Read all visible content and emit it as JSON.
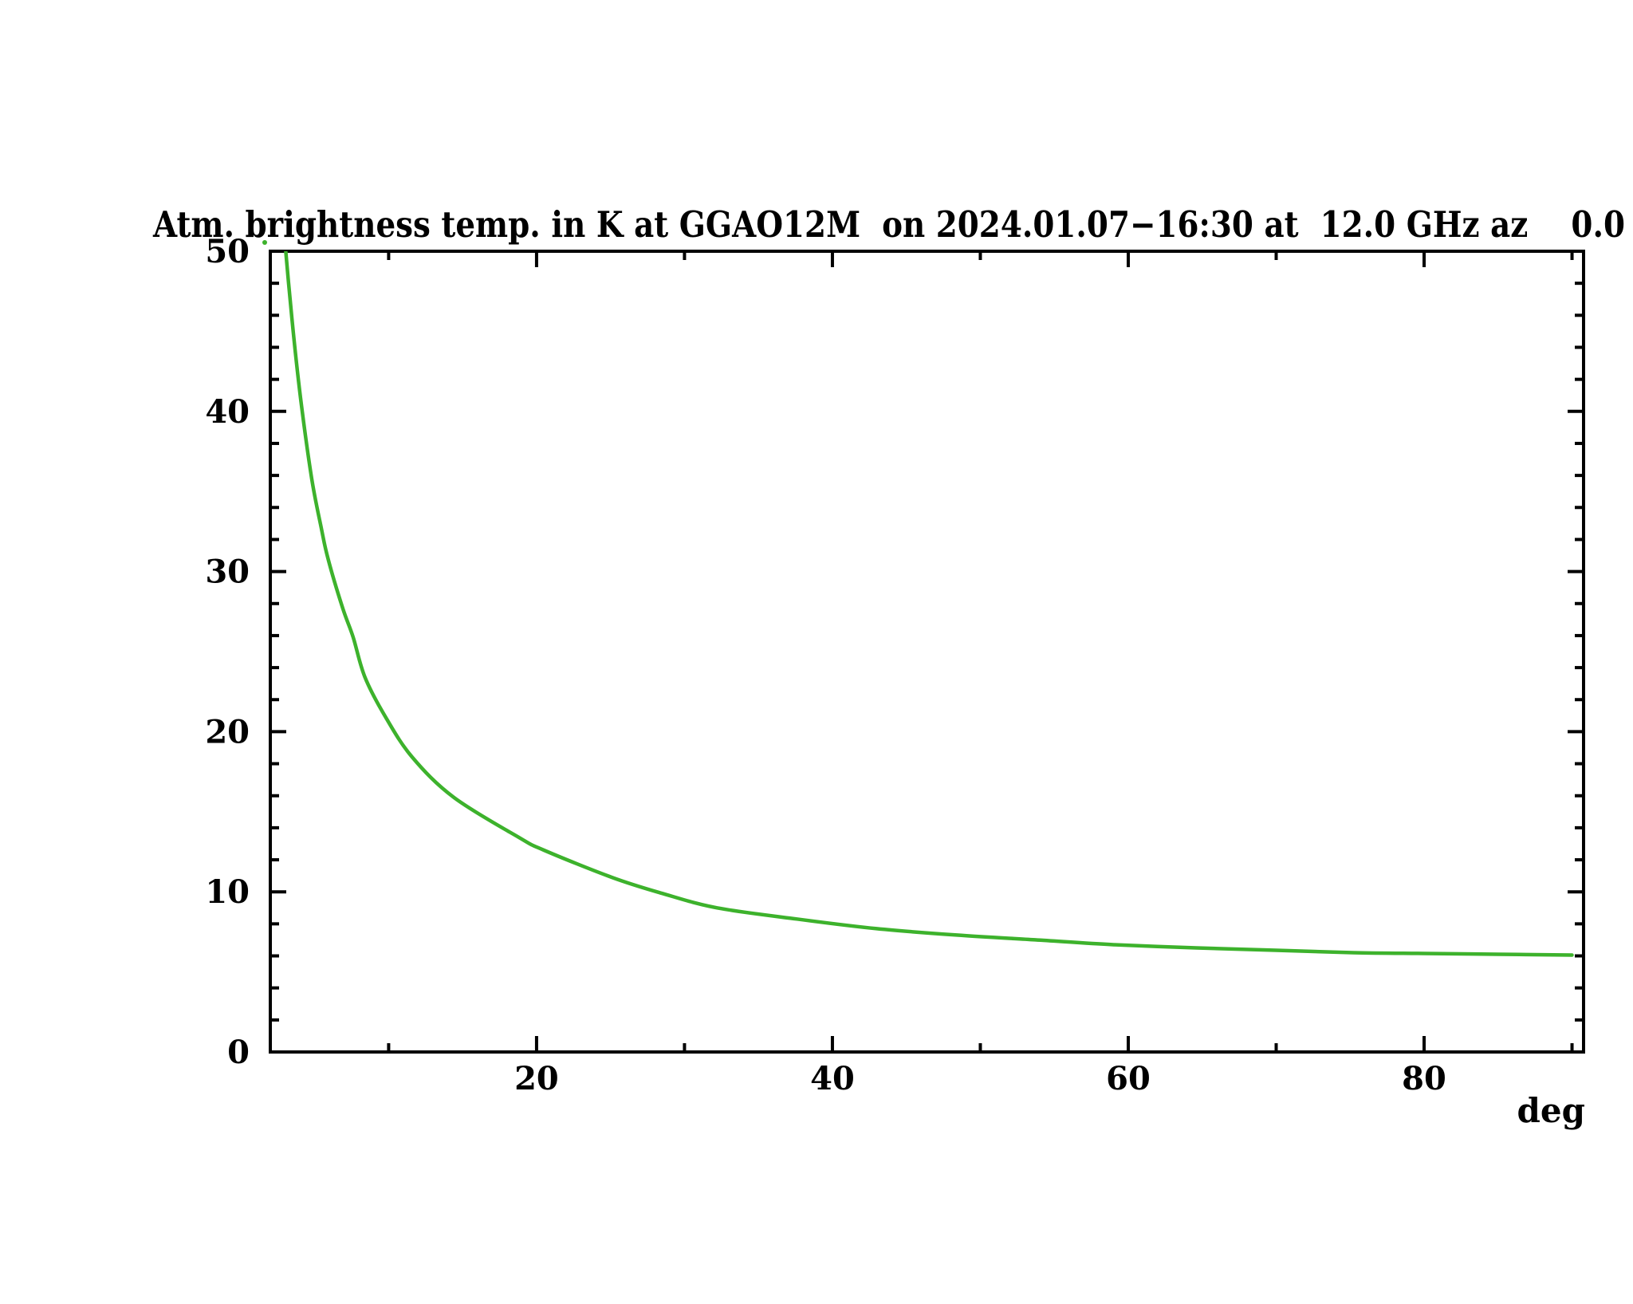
{
  "title": "Atm. brightness temp. in K at GGAO12M  on 2024.01.07−16:30 at  12.0 GHz az    0.0",
  "colors": {
    "background": "#ffffff",
    "axis": "#000000",
    "curve": "#3db22c"
  },
  "chart_data": {
    "type": "line",
    "title": "Atm. brightness temp. in K at GGAO12M  on 2024.01.07−16:30 at  12.0 GHz az    0.0",
    "xlabel": "deg",
    "ylabel": "",
    "xlim": [
      2.0,
      90.78
    ],
    "ylim": [
      0,
      50
    ],
    "x_major_ticks": [
      20,
      40,
      60,
      80
    ],
    "x_minor_ticks": [
      10,
      30,
      50,
      70,
      90
    ],
    "y_major_ticks": [
      0,
      10,
      20,
      30,
      40,
      50
    ],
    "y_minor_step": 2,
    "grid": false,
    "legend_position": "none",
    "series": [
      {
        "name": "atmospheric brightness temperature",
        "color": "#3db22c",
        "points": [
          [
            2.9,
            51.5
          ],
          [
            3.46,
            45.8
          ],
          [
            4.05,
            40.8
          ],
          [
            4.8,
            35.8
          ],
          [
            5.45,
            32.7
          ],
          [
            5.9,
            30.8
          ],
          [
            6.9,
            27.7
          ],
          [
            7.6,
            25.9
          ],
          [
            8.4,
            23.4
          ],
          [
            9.8,
            20.9
          ],
          [
            11.6,
            18.4
          ],
          [
            14.4,
            15.9
          ],
          [
            18.8,
            13.4
          ],
          [
            20.5,
            12.6
          ],
          [
            25.1,
            10.9
          ],
          [
            28.5,
            9.9
          ],
          [
            32.2,
            9.0
          ],
          [
            37.6,
            8.3
          ],
          [
            43.0,
            7.7
          ],
          [
            48.4,
            7.3
          ],
          [
            53.7,
            7.0
          ],
          [
            59.0,
            6.7
          ],
          [
            64.6,
            6.5
          ],
          [
            70.0,
            6.35
          ],
          [
            75.2,
            6.2
          ],
          [
            80.0,
            6.15
          ],
          [
            85.0,
            6.1
          ],
          [
            90.0,
            6.05
          ]
        ]
      }
    ],
    "artifact_dot": {
      "x": 1.62,
      "y": 50.55
    }
  }
}
